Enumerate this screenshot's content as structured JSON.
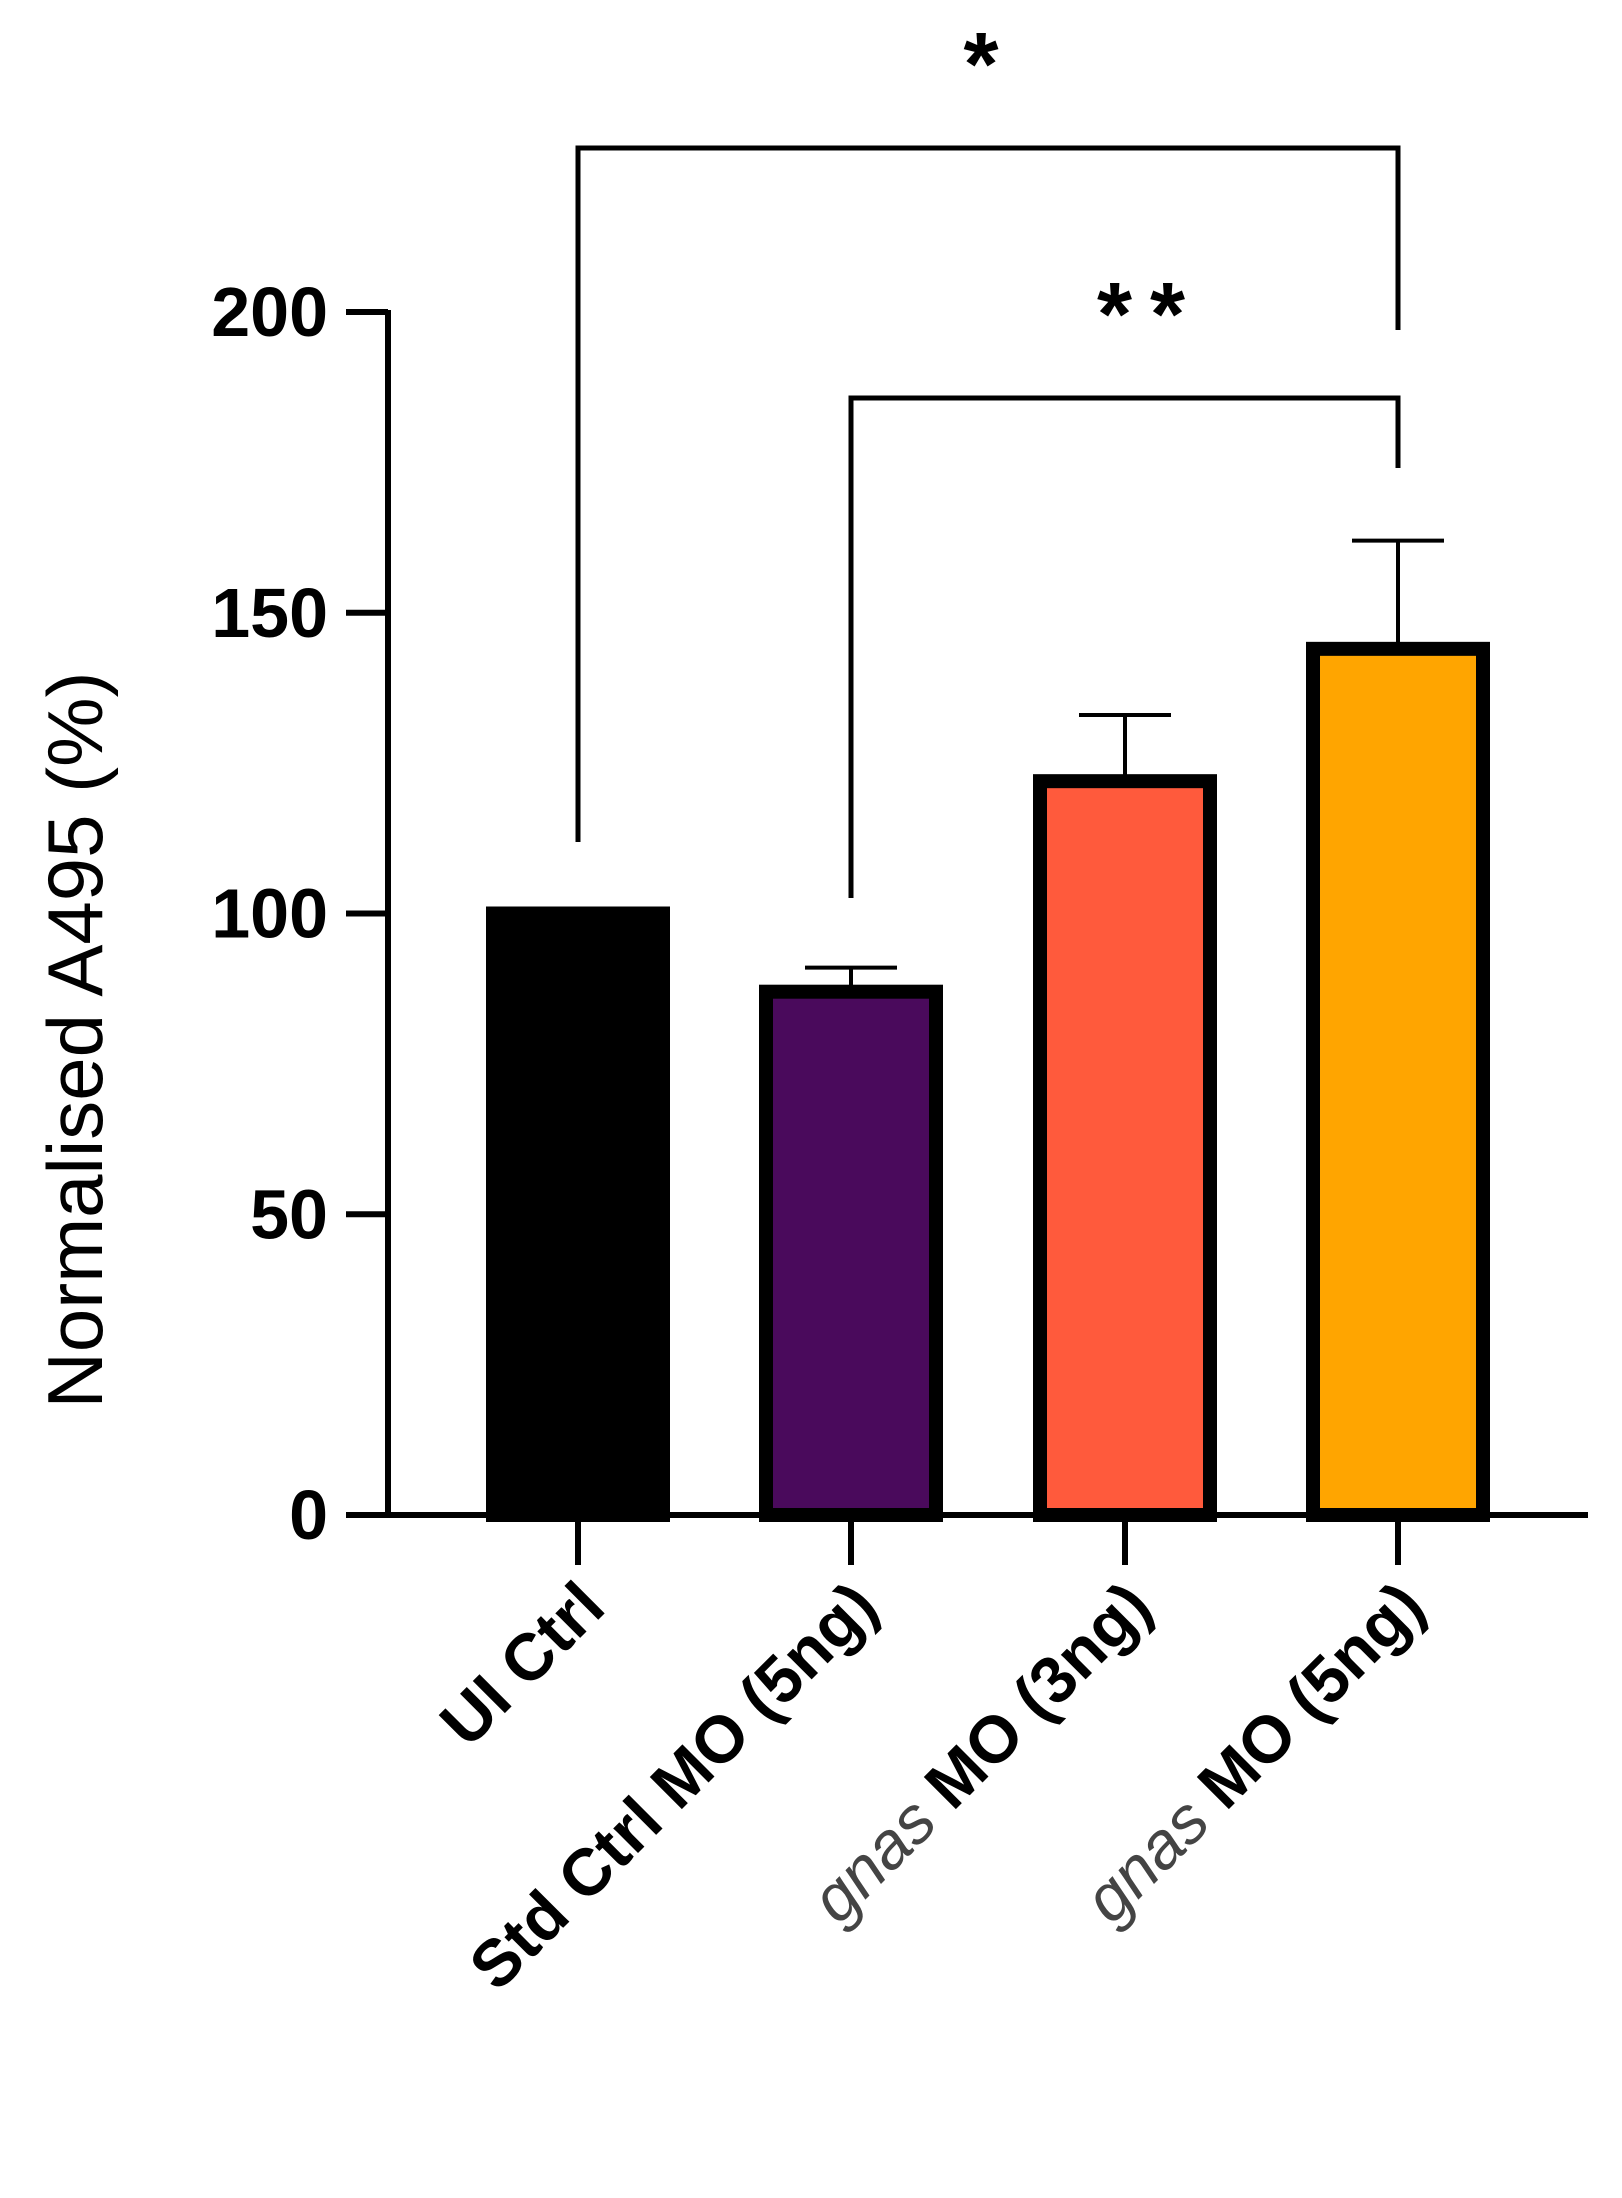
{
  "chart_data": {
    "type": "bar",
    "ylabel": "Normalised A495 (%)",
    "ylim": [
      0,
      200
    ],
    "yticks": [
      0,
      50,
      100,
      150,
      200
    ],
    "ytick_labels": [
      "0",
      "50",
      "100",
      "150",
      "200"
    ],
    "categories": [
      {
        "italic": "",
        "text": "UI Ctrl"
      },
      {
        "italic": "",
        "text": "Std Ctrl MO (5ng)"
      },
      {
        "italic": "gnas",
        "text": " MO (3ng)"
      },
      {
        "italic": "gnas",
        "text": " MO (5ng)"
      }
    ],
    "values": [
      100,
      87,
      122,
      144
    ],
    "errors": [
      0,
      4,
      11,
      18
    ],
    "colors": [
      "#000000",
      "#4a0a5c",
      "#ff5a3c",
      "#ffa500"
    ],
    "significance": [
      {
        "from": 0,
        "to": 3,
        "label": "*"
      },
      {
        "from": 1,
        "to": 3,
        "label": "**"
      }
    ]
  }
}
